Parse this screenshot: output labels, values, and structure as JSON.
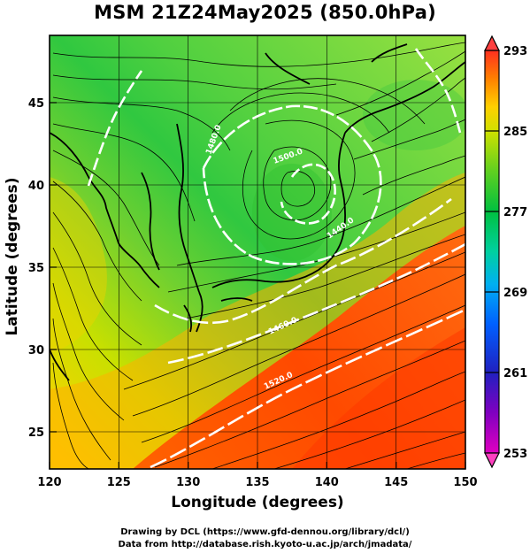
{
  "title": "MSM 21Z24May2025 (850.0hPa)",
  "x_axis": {
    "label": "Longitude (degrees)",
    "ticks": [
      "120",
      "125",
      "130",
      "135",
      "140",
      "145",
      "150"
    ],
    "range": [
      120,
      150
    ]
  },
  "y_axis": {
    "label": "Latitude  (degrees)",
    "ticks": [
      "25",
      "30",
      "35",
      "40",
      "45"
    ],
    "range": [
      22.4,
      47.6
    ]
  },
  "colorbar": {
    "ticks": [
      "293",
      "285",
      "277",
      "269",
      "261",
      "253"
    ],
    "range": [
      253,
      293
    ],
    "colors": [
      "#ff40a0",
      "#c000d0",
      "#4000c0",
      "#0040ff",
      "#00a0ff",
      "#00e0c0",
      "#00d060",
      "#40c020",
      "#a0d000",
      "#ffff00",
      "#ffc000",
      "#ff7000",
      "#ff3000",
      "#ff4040"
    ]
  },
  "contour_labels": [
    "1500.0",
    "1480.0",
    "1440.0",
    "1460.0",
    "1520.0"
  ],
  "credits": [
    "Drawing by DCL (https://www.gfd-dennou.org/library/dcl/)",
    "Data from http://database.rish.kyoto-u.ac.jp/arch/jmadata/"
  ]
}
